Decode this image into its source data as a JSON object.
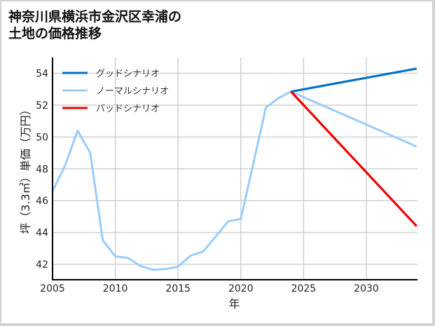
{
  "title": {
    "line1": "神奈川県横浜市金沢区幸浦の",
    "line2": "土地の価格推移"
  },
  "chart_data": {
    "type": "line",
    "title": "神奈川県横浜市金沢区幸浦の土地の価格推移",
    "xlabel": "年",
    "ylabel": "坪（3.3㎡）単価（万円）",
    "xlim": [
      2005,
      2034
    ],
    "ylim": [
      41,
      55
    ],
    "xticks": [
      2005,
      2010,
      2015,
      2020,
      2025,
      2030
    ],
    "yticks": [
      42,
      44,
      46,
      48,
      50,
      52,
      54
    ],
    "grid": true,
    "legend_position": "upper left",
    "series": [
      {
        "name": "グッドシナリオ",
        "color": "#0070c8",
        "x": [
          2024,
          2034
        ],
        "values": [
          52.85,
          54.3
        ]
      },
      {
        "name": "ノーマルシナリオ",
        "color": "#99ccff",
        "x": [
          2005,
          2006,
          2007,
          2008,
          2009,
          2010,
          2011,
          2012,
          2013,
          2014,
          2015,
          2016,
          2017,
          2018,
          2019,
          2020,
          2021,
          2022,
          2023,
          2024,
          2034
        ],
        "values": [
          46.6,
          48.2,
          50.4,
          49.0,
          43.5,
          42.5,
          42.4,
          41.9,
          41.65,
          41.7,
          41.85,
          42.55,
          42.8,
          43.75,
          44.7,
          44.85,
          48.35,
          51.85,
          52.45,
          52.85,
          49.4
        ]
      },
      {
        "name": "バッドシナリオ",
        "color": "#ee0000",
        "x": [
          2024,
          2034
        ],
        "values": [
          52.85,
          44.4
        ]
      }
    ]
  }
}
